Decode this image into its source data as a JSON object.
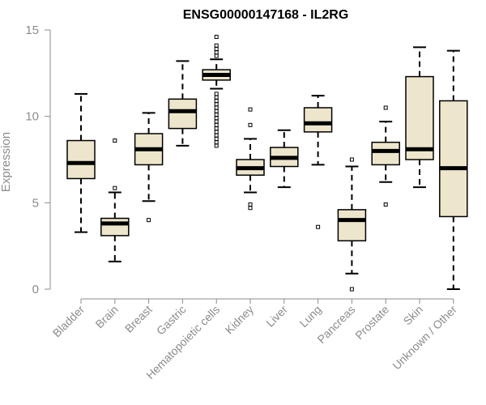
{
  "chart_data": {
    "type": "box",
    "title": "ENSG00000147168 - IL2RG",
    "ylabel": "Expression",
    "xlabel": "",
    "ylim": [
      0,
      15
    ],
    "yticks": [
      0,
      5,
      10,
      15
    ],
    "categories": [
      "Bladder",
      "Brain",
      "Breast",
      "Gastric",
      "Hematopoietic cells",
      "Kidney",
      "Liver",
      "Lung",
      "Pancreas",
      "Prostate",
      "Skin",
      "Unknown / Other"
    ],
    "boxes": [
      {
        "category": "Bladder",
        "whisker_low": 3.3,
        "q1": 6.4,
        "median": 7.3,
        "q3": 8.6,
        "whisker_high": 11.3,
        "outliers": []
      },
      {
        "category": "Brain",
        "whisker_low": 1.6,
        "q1": 3.1,
        "median": 3.8,
        "q3": 4.1,
        "whisker_high": 5.6,
        "outliers": [
          5.85,
          8.6
        ]
      },
      {
        "category": "Breast",
        "whisker_low": 5.1,
        "q1": 7.2,
        "median": 8.1,
        "q3": 9.0,
        "whisker_high": 10.2,
        "outliers": [
          4.0
        ]
      },
      {
        "category": "Gastric",
        "whisker_low": 8.3,
        "q1": 9.3,
        "median": 10.3,
        "q3": 11.0,
        "whisker_high": 13.2,
        "outliers": []
      },
      {
        "category": "Hematopoietic cells",
        "whisker_low": 11.6,
        "q1": 12.1,
        "median": 12.4,
        "q3": 12.7,
        "whisker_high": 13.3,
        "outliers": [
          8.3,
          8.5,
          8.7,
          8.9,
          9.1,
          9.3,
          9.5,
          9.7,
          9.9,
          10.1,
          10.3,
          10.5,
          10.7,
          10.9,
          11.1,
          11.3,
          13.5,
          13.7,
          13.9,
          14.1,
          14.6
        ]
      },
      {
        "category": "Kidney",
        "whisker_low": 5.6,
        "q1": 6.6,
        "median": 7.0,
        "q3": 7.5,
        "whisker_high": 8.7,
        "outliers": [
          4.7,
          4.9,
          9.5,
          10.4
        ]
      },
      {
        "category": "Liver",
        "whisker_low": 5.9,
        "q1": 7.1,
        "median": 7.6,
        "q3": 8.2,
        "whisker_high": 9.2,
        "outliers": []
      },
      {
        "category": "Lung",
        "whisker_low": 7.2,
        "q1": 9.1,
        "median": 9.6,
        "q3": 10.5,
        "whisker_high": 11.2,
        "outliers": [
          3.6
        ]
      },
      {
        "category": "Pancreas",
        "whisker_low": 0.9,
        "q1": 2.8,
        "median": 4.0,
        "q3": 4.6,
        "whisker_high": 7.1,
        "outliers": [
          0.0,
          7.5
        ]
      },
      {
        "category": "Prostate",
        "whisker_low": 6.2,
        "q1": 7.2,
        "median": 8.0,
        "q3": 8.5,
        "whisker_high": 9.7,
        "outliers": [
          4.9,
          10.5
        ]
      },
      {
        "category": "Skin",
        "whisker_low": 5.9,
        "q1": 7.5,
        "median": 8.1,
        "q3": 12.3,
        "whisker_high": 14.0,
        "outliers": []
      },
      {
        "category": "Unknown / Other",
        "whisker_low": 0.0,
        "q1": 4.2,
        "median": 7.0,
        "q3": 10.9,
        "whisker_high": 13.8,
        "outliers": []
      }
    ],
    "box_fill": "#ede6cc",
    "box_stroke": "#000000",
    "grid": false,
    "legend": "none"
  }
}
